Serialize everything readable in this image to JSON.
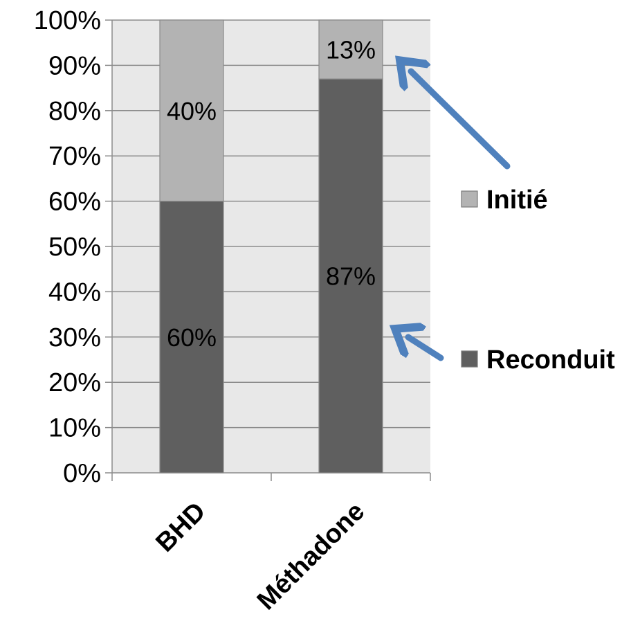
{
  "chart_data": {
    "type": "bar",
    "stacked": true,
    "percent_stacked": true,
    "categories": [
      "BHD",
      "Méthadone"
    ],
    "series": [
      {
        "name": "Reconduit",
        "values": [
          60,
          87
        ],
        "labels": [
          "60%",
          "87%"
        ],
        "color": "#5f5f5f"
      },
      {
        "name": "Initié",
        "values": [
          40,
          13
        ],
        "labels": [
          "40%",
          "13%"
        ],
        "color": "#b3b3b3"
      }
    ],
    "yticks": [
      "0%",
      "10%",
      "20%",
      "30%",
      "40%",
      "50%",
      "60%",
      "70%",
      "80%",
      "90%",
      "100%"
    ],
    "ylim": [
      0,
      100
    ],
    "grid": true,
    "legend_position": "right",
    "plot_background": "#e8e8e8",
    "arrow_color": "#4f81bd"
  }
}
